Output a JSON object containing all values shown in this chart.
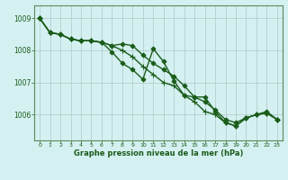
{
  "title": "Graphe pression niveau de la mer (hPa)",
  "background_color": "#d4f0f0",
  "grid_color": "#b0c8c8",
  "line_color": "#1a5c1a",
  "marker_color": "#1a5c1a",
  "xlim": [
    -0.5,
    23.5
  ],
  "ylim": [
    1005.2,
    1009.4
  ],
  "yticks": [
    1006,
    1007,
    1008,
    1009
  ],
  "xticks": [
    0,
    1,
    2,
    3,
    4,
    5,
    6,
    7,
    8,
    9,
    10,
    11,
    12,
    13,
    14,
    15,
    16,
    17,
    18,
    19,
    20,
    21,
    22,
    23
  ],
  "series": [
    {
      "name": "line1_straight",
      "x": [
        0,
        1,
        2,
        3,
        4,
        5,
        6,
        7,
        8,
        9,
        10,
        11,
        12,
        13,
        14,
        15,
        16,
        17,
        18,
        19,
        20,
        21,
        22,
        23
      ],
      "y": [
        1009.0,
        1008.55,
        1008.5,
        1008.35,
        1008.3,
        1008.3,
        1008.25,
        1008.15,
        1008.2,
        1008.15,
        1007.85,
        1007.6,
        1007.4,
        1007.2,
        1006.9,
        1006.55,
        1006.4,
        1006.15,
        1005.85,
        1005.75,
        1005.9,
        1006.0,
        1006.05,
        1005.85
      ],
      "marker": "D",
      "markersize": 2.5,
      "lw": 1.0
    },
    {
      "name": "line2_spike",
      "x": [
        0,
        1,
        2,
        3,
        4,
        5,
        6,
        7,
        8,
        9,
        10,
        11,
        12,
        13,
        14,
        15,
        16,
        17,
        18,
        19,
        20,
        21,
        22,
        23
      ],
      "y": [
        1009.0,
        1008.55,
        1008.5,
        1008.35,
        1008.3,
        1008.3,
        1008.25,
        1007.95,
        1007.6,
        1007.4,
        1007.1,
        1008.05,
        1007.65,
        1007.05,
        1006.6,
        1006.55,
        1006.55,
        1006.1,
        1005.75,
        1005.65,
        1005.9,
        1006.0,
        1006.1,
        1005.85
      ],
      "marker": "D",
      "markersize": 2.5,
      "lw": 1.0
    },
    {
      "name": "line3_plus",
      "x": [
        0,
        1,
        2,
        3,
        4,
        5,
        6,
        7,
        8,
        9,
        10,
        11,
        12,
        13,
        14,
        15,
        16,
        17,
        18,
        19,
        20,
        21,
        22,
        23
      ],
      "y": [
        1009.0,
        1008.55,
        1008.5,
        1008.35,
        1008.3,
        1008.3,
        1008.25,
        1008.15,
        1008.0,
        1007.8,
        1007.5,
        1007.25,
        1007.0,
        1006.9,
        1006.6,
        1006.4,
        1006.1,
        1006.0,
        1005.75,
        1005.65,
        1005.9,
        1006.0,
        1006.05,
        1005.85
      ],
      "marker": "+",
      "markersize": 4.0,
      "lw": 1.0
    }
  ]
}
